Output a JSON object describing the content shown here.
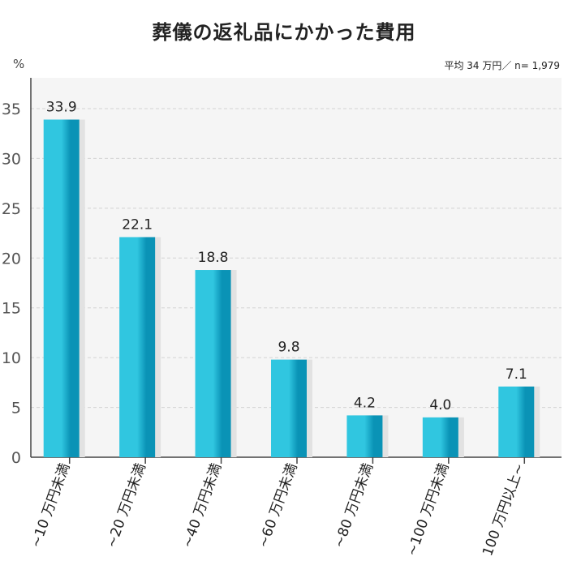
{
  "chart_data": {
    "type": "bar",
    "title": "葬儀の返礼品にかかった費用",
    "ylabel": "%",
    "note": "平均 34 万円／ n= 1,979",
    "categories": [
      "~10 万円未満",
      "~20 万円未満",
      "~40 万円未満",
      "~60 万円未満",
      "~80 万円未満",
      "~100 万円未満",
      "100 万円以上~"
    ],
    "values": [
      33.9,
      22.1,
      18.8,
      9.8,
      4.2,
      4.0,
      7.1
    ],
    "value_labels": [
      "33.9",
      "22.1",
      "18.8",
      "9.8",
      "4.2",
      "4.0",
      "7.1"
    ],
    "ylim": [
      0,
      35
    ],
    "yticks": [
      "0",
      "5",
      "10",
      "15",
      "20",
      "25",
      "30",
      "35"
    ],
    "grid": true,
    "colors": {
      "bar_light": "#30c6e0",
      "bar_dark": "#0a93b6",
      "shadow": "#e2e2e2",
      "plot_bg": "#f5f5f5",
      "grid": "#d4d4d4"
    }
  }
}
